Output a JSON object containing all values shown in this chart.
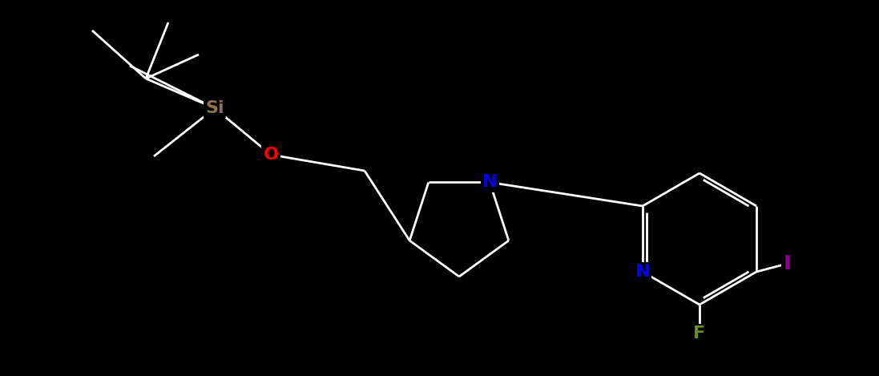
{
  "background": "#000000",
  "bond_color": "#ffffff",
  "figsize": [
    10.97,
    4.69
  ],
  "dpi": 100,
  "atom_colors": {
    "Si": "#8B7355",
    "O": "#FF0000",
    "N": "#0000EE",
    "I": "#8B008B",
    "F": "#6B8E23",
    "C": "#ffffff"
  },
  "fontsize": 16,
  "lw": 2.0
}
